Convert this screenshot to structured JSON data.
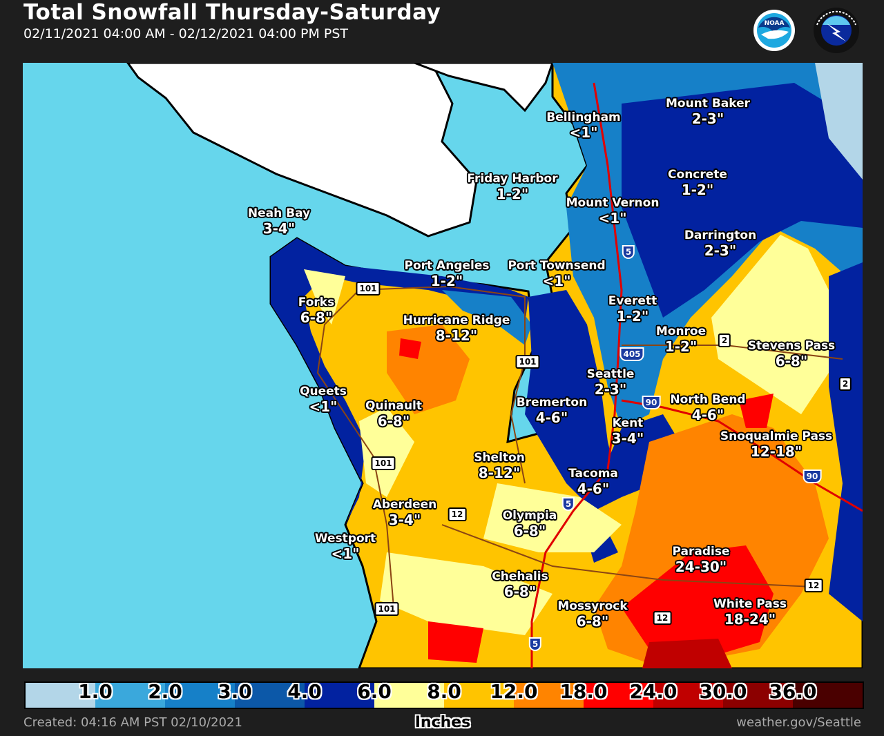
{
  "header": {
    "title": "Total Snowfall Thursday-Saturday",
    "subtitle": "02/11/2021 04:00 AM - 02/12/2021 04:00 PM PST",
    "logos": [
      "NOAA",
      "NATIONAL WEATHER SERVICE"
    ]
  },
  "map": {
    "colors": {
      "ocean": "#66d6ec",
      "canada": "#ffffff"
    },
    "places": [
      {
        "name": "Mount Baker",
        "amount": "2-3\""
      },
      {
        "name": "Bellingham",
        "amount": "<1\""
      },
      {
        "name": "Concrete",
        "amount": "1-2\""
      },
      {
        "name": "Friday Harbor",
        "amount": "1-2\""
      },
      {
        "name": "Mount Vernon",
        "amount": "<1\""
      },
      {
        "name": "Darrington",
        "amount": "2-3\""
      },
      {
        "name": "Neah Bay",
        "amount": "3-4\""
      },
      {
        "name": "Port Angeles",
        "amount": "1-2\""
      },
      {
        "name": "Port Townsend",
        "amount": "<1\""
      },
      {
        "name": "Everett",
        "amount": "1-2\""
      },
      {
        "name": "Forks",
        "amount": "6-8\""
      },
      {
        "name": "Hurricane Ridge",
        "amount": "8-12\""
      },
      {
        "name": "Monroe",
        "amount": "1-2\""
      },
      {
        "name": "Stevens Pass",
        "amount": "6-8\""
      },
      {
        "name": "Seattle",
        "amount": "2-3\""
      },
      {
        "name": "Queets",
        "amount": "<1\""
      },
      {
        "name": "Quinault",
        "amount": "6-8\""
      },
      {
        "name": "Bremerton",
        "amount": "4-6\""
      },
      {
        "name": "North Bend",
        "amount": "4-6\""
      },
      {
        "name": "Kent",
        "amount": "3-4\""
      },
      {
        "name": "Snoqualmie Pass",
        "amount": "12-18\""
      },
      {
        "name": "Shelton",
        "amount": "8-12\""
      },
      {
        "name": "Tacoma",
        "amount": "4-6\""
      },
      {
        "name": "Aberdeen",
        "amount": "3-4\""
      },
      {
        "name": "Olympia",
        "amount": "6-8\""
      },
      {
        "name": "Westport",
        "amount": "<1\""
      },
      {
        "name": "Paradise",
        "amount": "24-30\""
      },
      {
        "name": "Chehalis",
        "amount": "6-8\""
      },
      {
        "name": "White Pass",
        "amount": "18-24\""
      },
      {
        "name": "Mossyrock",
        "amount": "6-8\""
      }
    ],
    "highways": [
      "101",
      "101",
      "101",
      "101",
      "5",
      "5",
      "5",
      "405",
      "90",
      "90",
      "2",
      "2",
      "12",
      "12",
      "12"
    ]
  },
  "legend": {
    "units": "Inches",
    "ticks": [
      "1.0",
      "2.0",
      "3.0",
      "4.0",
      "6.0",
      "8.0",
      "12.0",
      "18.0",
      "24.0",
      "30.0",
      "36.0"
    ],
    "colors": [
      "#b3d6e8",
      "#3aa8dc",
      "#1680c8",
      "#0c58a8",
      "#0222a0",
      "#ffff99",
      "#ffc400",
      "#ff8400",
      "#ff0000",
      "#c00000",
      "#8c0000",
      "#4a0000"
    ]
  },
  "footer": {
    "created": "Created: 04:16 AM PST 02/10/2021",
    "source": "weather.gov/Seattle"
  }
}
